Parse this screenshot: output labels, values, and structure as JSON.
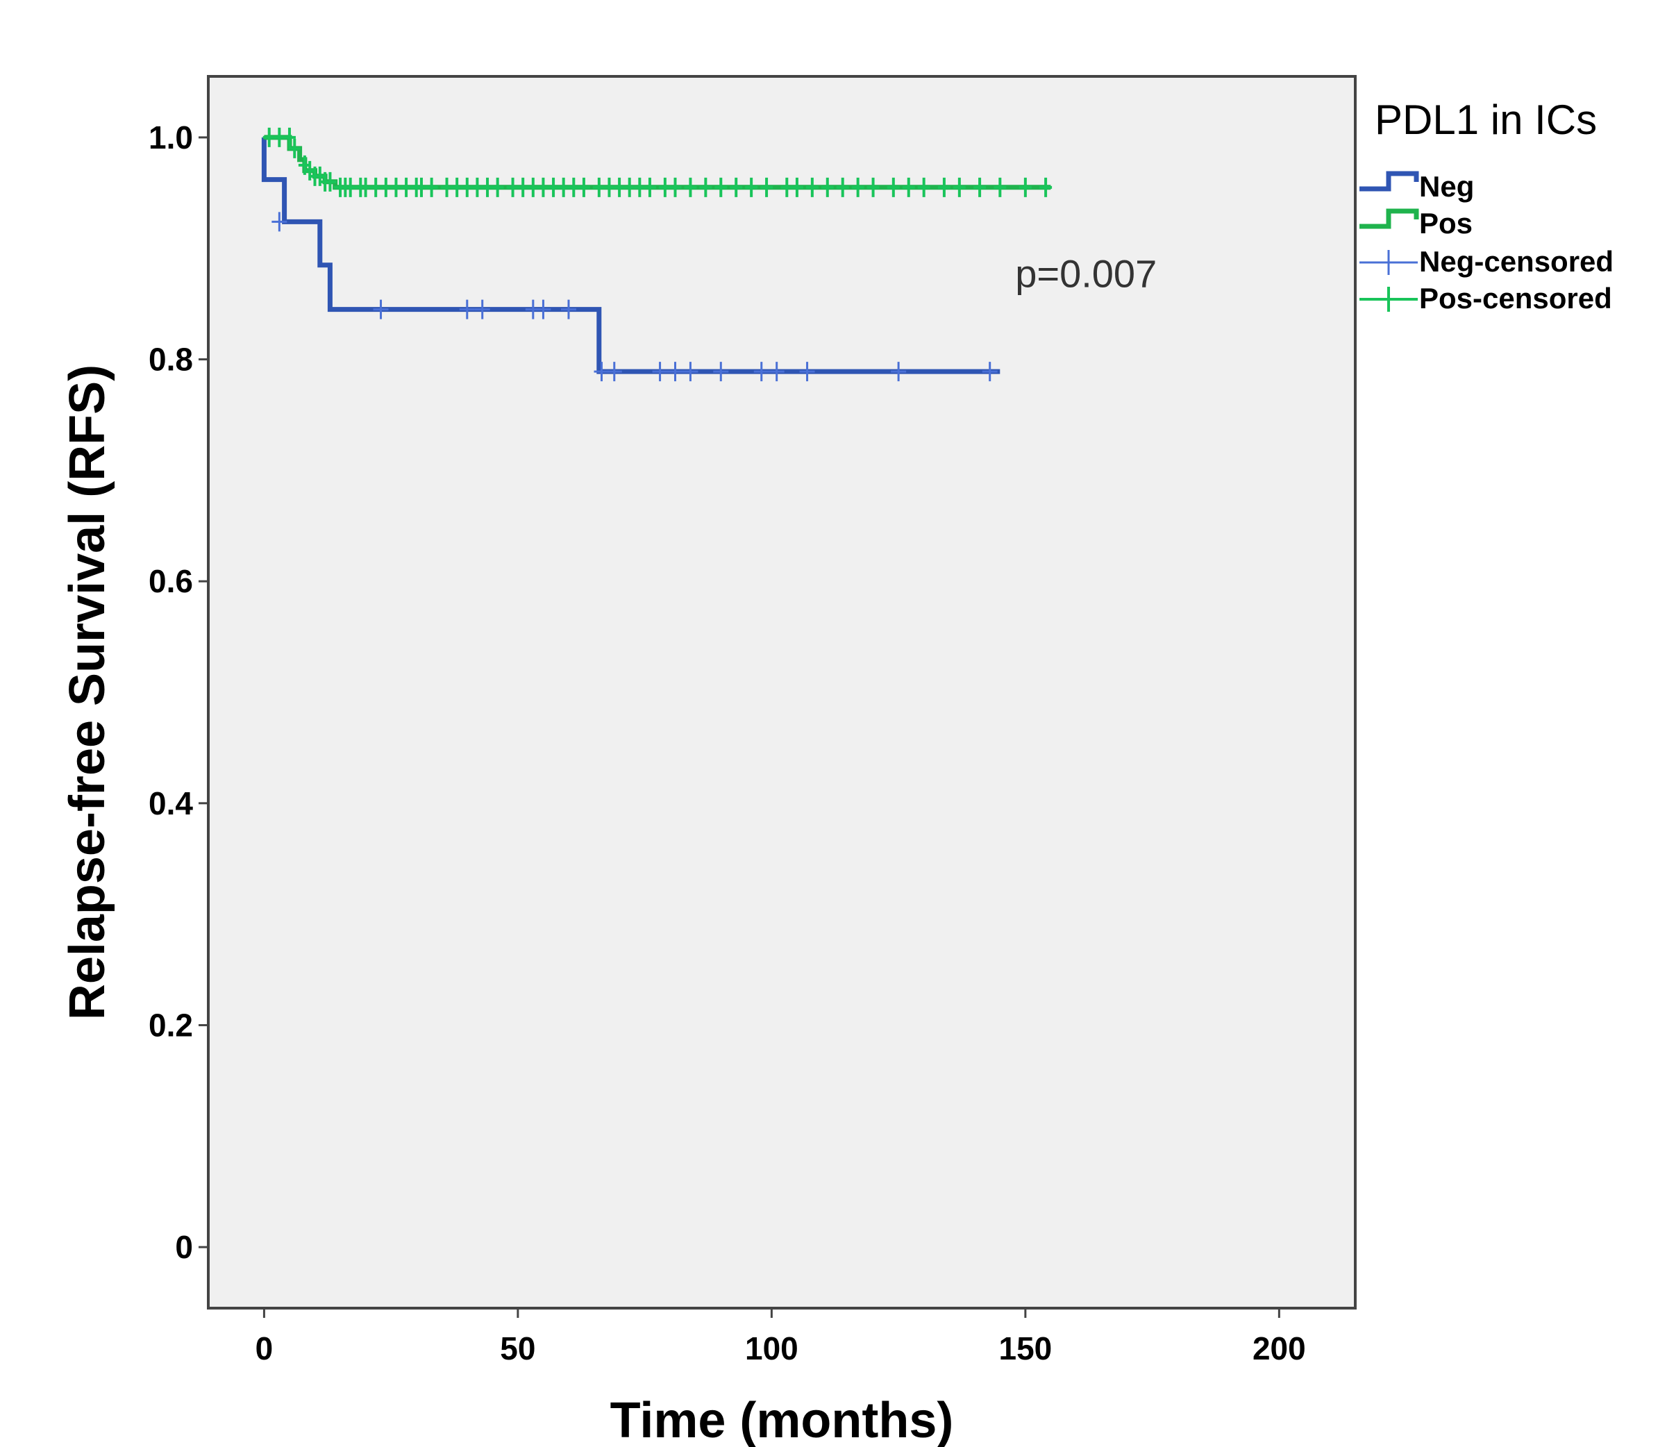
{
  "chart_data": {
    "type": "line",
    "subtype": "kaplan-meier",
    "title": "",
    "xlabel": "Time (months)",
    "ylabel": "Relapse-free Survival (RFS)",
    "xlim": [
      -11,
      215
    ],
    "ylim": [
      -0.055,
      1.055
    ],
    "xticks": [
      0,
      50,
      100,
      150,
      200
    ],
    "xtick_labels": [
      "0",
      "50",
      "100",
      "150",
      "200"
    ],
    "yticks": [
      0,
      0.2,
      0.4,
      0.6,
      0.8,
      1.0
    ],
    "ytick_labels": [
      "0",
      "0.2",
      "0.4",
      "0.6",
      "0.8",
      "1.0"
    ],
    "grid": false,
    "legend": {
      "title": "PDL1 in ICs",
      "position": "right",
      "entries": [
        {
          "label": "Neg",
          "color": "#2f55b3",
          "kind": "line"
        },
        {
          "label": "Pos",
          "color": "#1fb34d",
          "kind": "line"
        },
        {
          "label": "Neg-censored",
          "color": "#4a70d6",
          "kind": "censor"
        },
        {
          "label": "Pos-censored",
          "color": "#19c45a",
          "kind": "censor"
        }
      ]
    },
    "annotations": [
      {
        "text": "p=0.007",
        "x": 148,
        "y": 0.865
      }
    ],
    "series": [
      {
        "name": "Neg",
        "color": "#2f55b3",
        "steps": [
          [
            0,
            1.0
          ],
          [
            0,
            0.962
          ],
          [
            4,
            0.962
          ],
          [
            4,
            0.924
          ],
          [
            11,
            0.924
          ],
          [
            11,
            0.885
          ],
          [
            13,
            0.885
          ],
          [
            13,
            0.845
          ],
          [
            66,
            0.845
          ],
          [
            66,
            0.789
          ],
          [
            145,
            0.789
          ]
        ],
        "censored": [
          [
            3,
            0.924
          ],
          [
            23,
            0.845
          ],
          [
            40,
            0.845
          ],
          [
            43,
            0.845
          ],
          [
            53,
            0.845
          ],
          [
            55,
            0.845
          ],
          [
            60,
            0.845
          ],
          [
            66.5,
            0.789
          ],
          [
            69,
            0.789
          ],
          [
            78,
            0.789
          ],
          [
            81,
            0.789
          ],
          [
            84,
            0.789
          ],
          [
            90,
            0.789
          ],
          [
            98,
            0.789
          ],
          [
            101,
            0.789
          ],
          [
            107,
            0.789
          ],
          [
            125,
            0.789
          ],
          [
            143,
            0.789
          ]
        ]
      },
      {
        "name": "Pos",
        "color": "#1fb34d",
        "steps": [
          [
            0,
            1.0
          ],
          [
            5,
            1.0
          ],
          [
            5,
            0.99
          ],
          [
            7,
            0.99
          ],
          [
            7,
            0.98
          ],
          [
            8,
            0.98
          ],
          [
            8,
            0.97
          ],
          [
            10,
            0.97
          ],
          [
            10,
            0.965
          ],
          [
            12,
            0.965
          ],
          [
            12,
            0.96
          ],
          [
            14,
            0.96
          ],
          [
            14,
            0.955
          ],
          [
            155,
            0.955
          ]
        ],
        "censored": [
          [
            1,
            1.0
          ],
          [
            3,
            1.0
          ],
          [
            5,
            1.0
          ],
          [
            6,
            0.99
          ],
          [
            8,
            0.975
          ],
          [
            9,
            0.97
          ],
          [
            10,
            0.965
          ],
          [
            11,
            0.965
          ],
          [
            12,
            0.96
          ],
          [
            13,
            0.96
          ],
          [
            15,
            0.955
          ],
          [
            16,
            0.955
          ],
          [
            17,
            0.955
          ],
          [
            19,
            0.955
          ],
          [
            20,
            0.955
          ],
          [
            22,
            0.955
          ],
          [
            24,
            0.955
          ],
          [
            26,
            0.955
          ],
          [
            28,
            0.955
          ],
          [
            30,
            0.955
          ],
          [
            31,
            0.955
          ],
          [
            33,
            0.955
          ],
          [
            36,
            0.955
          ],
          [
            38,
            0.955
          ],
          [
            40,
            0.955
          ],
          [
            42,
            0.955
          ],
          [
            44,
            0.955
          ],
          [
            46,
            0.955
          ],
          [
            49,
            0.955
          ],
          [
            51,
            0.955
          ],
          [
            53,
            0.955
          ],
          [
            55,
            0.955
          ],
          [
            57,
            0.955
          ],
          [
            59,
            0.955
          ],
          [
            61,
            0.955
          ],
          [
            63,
            0.955
          ],
          [
            66,
            0.955
          ],
          [
            68,
            0.955
          ],
          [
            70,
            0.955
          ],
          [
            72,
            0.955
          ],
          [
            74,
            0.955
          ],
          [
            76,
            0.955
          ],
          [
            79,
            0.955
          ],
          [
            81,
            0.955
          ],
          [
            84,
            0.955
          ],
          [
            87,
            0.955
          ],
          [
            90,
            0.955
          ],
          [
            93,
            0.955
          ],
          [
            96,
            0.955
          ],
          [
            99,
            0.955
          ],
          [
            103,
            0.955
          ],
          [
            105,
            0.955
          ],
          [
            108,
            0.955
          ],
          [
            111,
            0.955
          ],
          [
            114,
            0.955
          ],
          [
            117,
            0.955
          ],
          [
            120,
            0.955
          ],
          [
            124,
            0.955
          ],
          [
            127,
            0.955
          ],
          [
            130,
            0.955
          ],
          [
            134,
            0.955
          ],
          [
            137,
            0.955
          ],
          [
            141,
            0.955
          ],
          [
            145,
            0.955
          ],
          [
            150,
            0.955
          ],
          [
            154,
            0.955
          ]
        ]
      }
    ]
  }
}
